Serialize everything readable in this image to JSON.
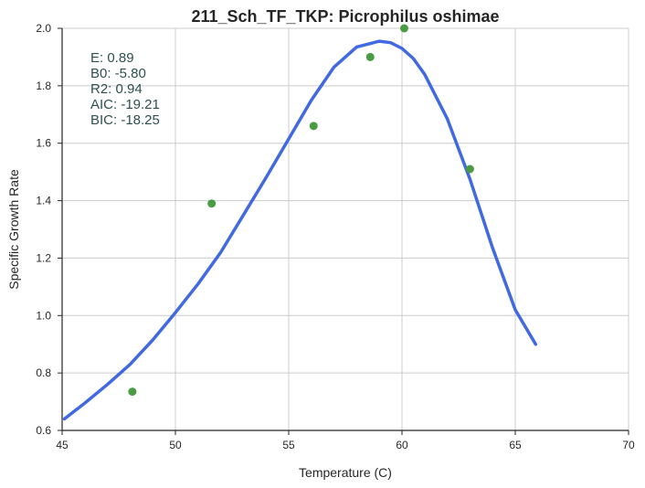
{
  "chart_data": {
    "type": "scatter",
    "title": "211_Sch_TF_TKP: Picrophilus oshimae",
    "xlabel": "Temperature (C)",
    "ylabel": "Specific Growth Rate",
    "xlim": [
      45,
      70
    ],
    "ylim": [
      0.6,
      2.0
    ],
    "x_ticks": [
      45,
      50,
      55,
      60,
      65,
      70
    ],
    "y_ticks": [
      0.6,
      0.8,
      1.0,
      1.2,
      1.4,
      1.6,
      1.8,
      2.0
    ],
    "x_tick_labels": [
      "45",
      "50",
      "55",
      "60",
      "65",
      "70"
    ],
    "y_tick_labels": [
      "0.6",
      "0.8",
      "1.0",
      "1.2",
      "1.4",
      "1.6",
      "1.8",
      "2.0"
    ],
    "grid": true,
    "stats": [
      "E:  0.89",
      "B0:  -5.80",
      "R2:  0.94",
      "AIC: -19.21",
      "BIC: -18.25"
    ],
    "series": [
      {
        "type": "scatter",
        "color": "#4a9c44",
        "x": [
          48.1,
          51.6,
          56.1,
          58.6,
          60.1,
          63.0
        ],
        "y": [
          0.735,
          1.39,
          1.66,
          1.9,
          2.0,
          1.51
        ]
      },
      {
        "type": "line",
        "color": "#4169e1",
        "x": [
          45.1,
          46,
          47,
          48,
          49,
          50,
          51,
          52,
          53,
          54,
          55,
          56,
          57,
          58,
          59,
          59.5,
          60,
          60.5,
          61,
          62,
          63,
          64,
          65,
          65.9
        ],
        "y": [
          0.64,
          0.695,
          0.76,
          0.83,
          0.915,
          1.01,
          1.11,
          1.22,
          1.35,
          1.48,
          1.615,
          1.75,
          1.865,
          1.935,
          1.955,
          1.95,
          1.93,
          1.895,
          1.84,
          1.685,
          1.475,
          1.235,
          1.02,
          0.9
        ]
      }
    ]
  }
}
